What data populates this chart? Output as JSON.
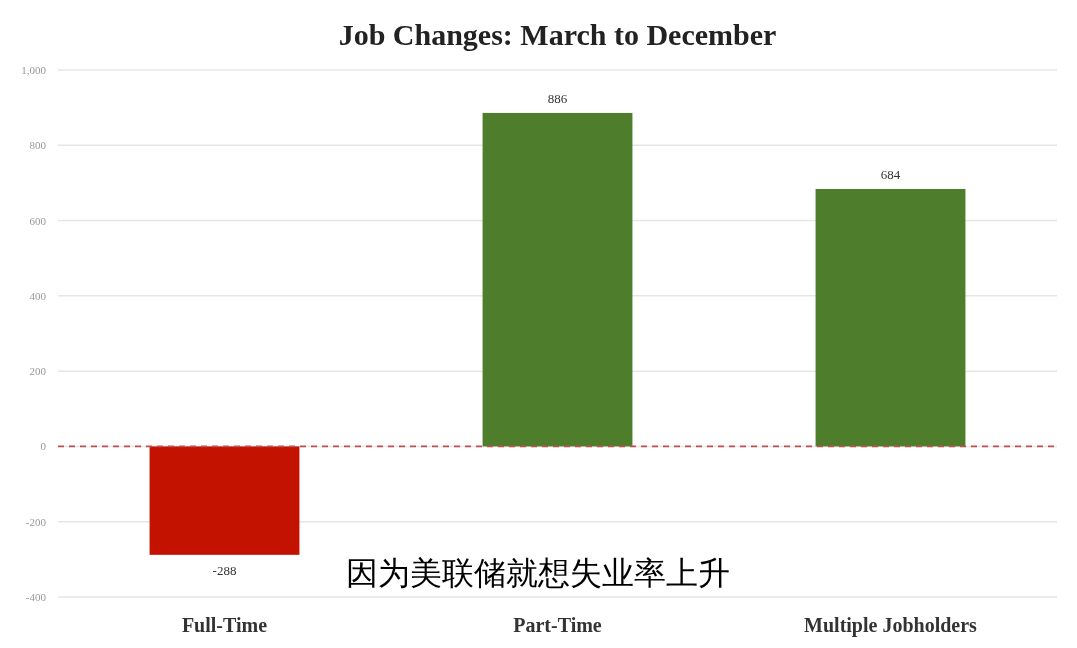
{
  "chart_data": {
    "type": "bar",
    "title": "Job Changes: March to December",
    "categories": [
      "Full-Time",
      "Part-Time",
      "Multiple Jobholders"
    ],
    "values": [
      -288,
      886,
      684
    ],
    "colors": [
      "#c41200",
      "#4e7d2c",
      "#4e7d2c"
    ],
    "ylim": [
      -400,
      1000
    ],
    "yticks": [
      -400,
      -200,
      0,
      200,
      400,
      600,
      800,
      {
        "value": 1000,
        "label": "1,000"
      }
    ],
    "grid": "y",
    "data_labels": true,
    "ref_lines": [
      {
        "axis": "y",
        "value": 0,
        "color": "#c0504d",
        "line_style": "dashed"
      }
    ],
    "annotations": [
      "因为美联储就想失业率上升"
    ]
  }
}
